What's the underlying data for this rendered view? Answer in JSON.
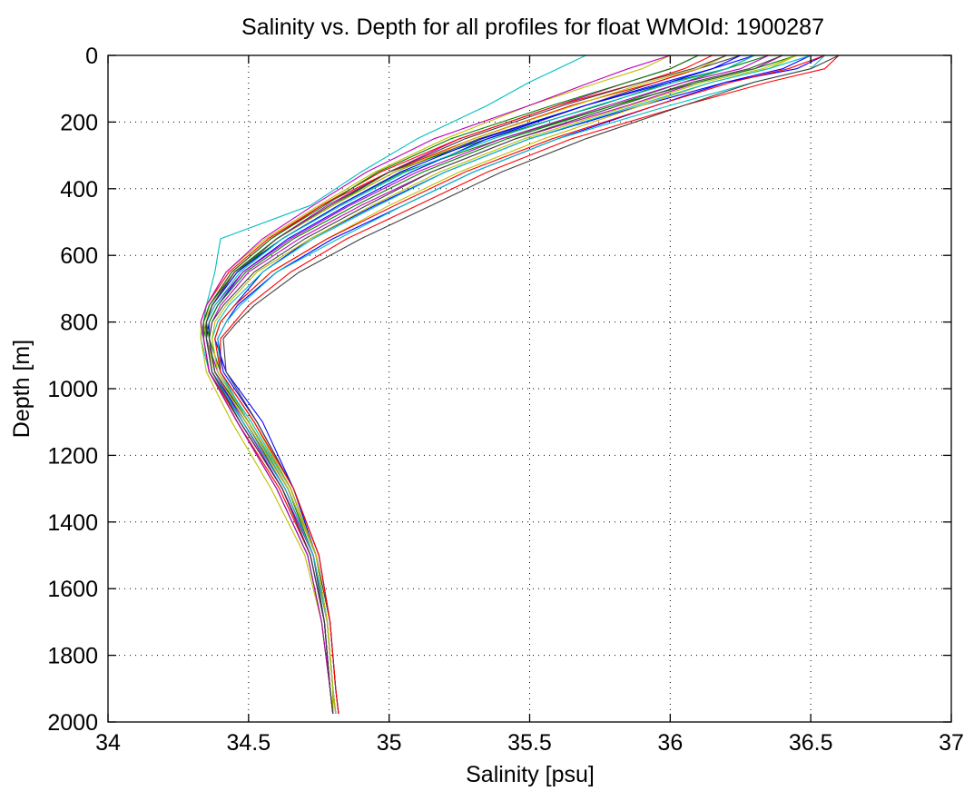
{
  "chart_data": {
    "type": "line",
    "title": "Salinity vs. Depth for all profiles for float WMOId: 1900287",
    "xlabel": "Salinity [psu]",
    "ylabel": "Depth [m]",
    "xlim": [
      34,
      37
    ],
    "ylim": [
      0,
      2000
    ],
    "y_reversed": true,
    "grid": true,
    "legend": "none",
    "x_ticks": [
      "34",
      "34.5",
      "35",
      "35.5",
      "36",
      "36.5",
      "37"
    ],
    "y_ticks": [
      "0",
      "200",
      "400",
      "600",
      "800",
      "1000",
      "1200",
      "1400",
      "1600",
      "1800",
      "2000"
    ],
    "colors": [
      "#0000ff",
      "#008000",
      "#ff0000",
      "#00bfbf",
      "#bf00bf",
      "#bfbf00",
      "#404040"
    ],
    "depths": [
      0,
      40,
      80,
      150,
      250,
      350,
      450,
      550,
      650,
      750,
      800,
      850,
      950,
      1100,
      1300,
      1500,
      1700,
      1900,
      1975
    ],
    "series": [
      {
        "values": [
          36.55,
          36.45,
          36.2,
          35.9,
          35.5,
          35.2,
          34.95,
          34.72,
          34.55,
          34.45,
          34.4,
          34.38,
          34.42,
          34.55,
          34.66,
          34.74,
          34.78,
          34.8,
          34.81
        ]
      },
      {
        "values": [
          36.3,
          36.2,
          36.05,
          35.8,
          35.4,
          35.05,
          34.82,
          34.62,
          34.45,
          34.37,
          34.35,
          34.36,
          34.4,
          34.5,
          34.64,
          34.73,
          34.78,
          34.8,
          34.8
        ]
      },
      {
        "values": [
          36.6,
          36.55,
          36.35,
          36.05,
          35.65,
          35.35,
          35.1,
          34.85,
          34.65,
          34.5,
          34.45,
          34.4,
          34.4,
          34.52,
          34.65,
          34.74,
          34.78,
          34.8,
          34.81
        ]
      },
      {
        "values": [
          35.7,
          35.6,
          35.5,
          35.35,
          35.1,
          34.9,
          34.72,
          34.4,
          34.38,
          34.35,
          34.34,
          34.33,
          34.36,
          34.48,
          34.63,
          34.73,
          34.77,
          34.79,
          34.8
        ]
      },
      {
        "values": [
          36.1,
          36.0,
          35.85,
          35.6,
          35.25,
          35.0,
          34.78,
          34.6,
          34.45,
          34.37,
          34.35,
          34.35,
          34.39,
          34.5,
          34.64,
          34.74,
          34.78,
          34.8,
          34.81
        ]
      },
      {
        "values": [
          36.45,
          36.35,
          36.15,
          35.9,
          35.55,
          35.25,
          35.0,
          34.78,
          34.58,
          34.45,
          34.4,
          34.38,
          34.4,
          34.52,
          34.65,
          34.74,
          34.78,
          34.8,
          34.8
        ]
      },
      {
        "values": [
          36.25,
          36.1,
          35.95,
          35.7,
          35.32,
          35.02,
          34.8,
          34.6,
          34.45,
          34.36,
          34.34,
          34.35,
          34.38,
          34.49,
          34.63,
          34.73,
          34.77,
          34.79,
          34.8
        ]
      },
      {
        "values": [
          36.5,
          36.4,
          36.2,
          35.95,
          35.6,
          35.3,
          35.05,
          34.8,
          34.6,
          34.46,
          34.42,
          34.39,
          34.41,
          34.53,
          34.66,
          34.75,
          34.79,
          34.81,
          34.82
        ]
      },
      {
        "values": [
          36.35,
          36.2,
          36.0,
          35.75,
          35.35,
          35.0,
          34.8,
          34.6,
          34.46,
          34.37,
          34.35,
          34.34,
          34.36,
          34.46,
          34.6,
          34.71,
          34.76,
          34.79,
          34.8
        ]
      },
      {
        "values": [
          36.2,
          36.1,
          35.95,
          35.65,
          35.3,
          35.0,
          34.76,
          34.57,
          34.43,
          34.35,
          34.33,
          34.34,
          34.36,
          34.47,
          34.62,
          34.72,
          34.77,
          34.79,
          34.8
        ]
      },
      {
        "values": [
          36.55,
          36.5,
          36.3,
          36.0,
          35.6,
          35.3,
          35.05,
          34.82,
          34.6,
          34.47,
          34.42,
          34.39,
          34.4,
          34.5,
          34.64,
          34.74,
          34.78,
          34.8,
          34.81
        ]
      },
      {
        "values": [
          36.4,
          36.3,
          36.1,
          35.85,
          35.45,
          35.15,
          34.9,
          34.68,
          34.5,
          34.4,
          34.37,
          34.36,
          34.38,
          34.48,
          34.63,
          34.73,
          34.78,
          34.8,
          34.81
        ]
      },
      {
        "values": [
          36.0,
          35.9,
          35.75,
          35.5,
          35.2,
          34.95,
          34.75,
          34.56,
          34.42,
          34.35,
          34.33,
          34.33,
          34.35,
          34.44,
          34.58,
          34.7,
          34.76,
          34.79,
          34.8
        ]
      },
      {
        "values": [
          36.6,
          36.5,
          36.3,
          36.05,
          35.7,
          35.4,
          35.15,
          34.9,
          34.68,
          34.52,
          34.46,
          34.41,
          34.42,
          34.53,
          34.66,
          34.75,
          34.79,
          34.81,
          34.82
        ]
      },
      {
        "values": [
          36.3,
          36.15,
          36.0,
          35.7,
          35.35,
          35.08,
          34.85,
          34.64,
          34.48,
          34.39,
          34.36,
          34.35,
          34.37,
          34.49,
          34.64,
          34.74,
          34.78,
          34.8,
          34.81
        ]
      },
      {
        "values": [
          36.45,
          36.3,
          36.1,
          35.8,
          35.42,
          35.12,
          34.88,
          34.66,
          34.49,
          34.39,
          34.36,
          34.36,
          34.38,
          34.5,
          34.65,
          34.74,
          34.78,
          34.8,
          34.81
        ]
      },
      {
        "values": [
          36.15,
          36.05,
          35.9,
          35.6,
          35.25,
          34.97,
          34.76,
          34.58,
          34.44,
          34.36,
          34.34,
          34.34,
          34.36,
          34.46,
          34.61,
          34.72,
          34.77,
          34.79,
          34.8
        ]
      },
      {
        "values": [
          36.5,
          36.35,
          36.15,
          35.88,
          35.5,
          35.2,
          34.96,
          34.73,
          34.55,
          34.43,
          34.39,
          34.37,
          34.39,
          34.51,
          34.65,
          34.74,
          34.78,
          34.8,
          34.81
        ]
      },
      {
        "values": [
          36.35,
          36.25,
          36.05,
          35.78,
          35.4,
          35.1,
          34.86,
          34.65,
          34.48,
          34.38,
          34.35,
          34.35,
          34.37,
          34.48,
          34.62,
          34.73,
          34.78,
          34.8,
          34.81
        ]
      },
      {
        "values": [
          36.2,
          36.1,
          35.92,
          35.66,
          35.3,
          35.02,
          34.8,
          34.6,
          34.45,
          34.37,
          34.34,
          34.35,
          34.38,
          34.49,
          34.64,
          34.74,
          34.78,
          34.8,
          34.81
        ]
      },
      {
        "values": [
          36.4,
          36.28,
          36.08,
          35.82,
          35.45,
          35.15,
          34.92,
          34.7,
          34.52,
          34.41,
          34.37,
          34.36,
          34.38,
          34.5,
          34.65,
          34.74,
          34.79,
          34.81,
          34.82
        ]
      },
      {
        "values": [
          36.25,
          36.15,
          35.98,
          35.7,
          35.33,
          35.04,
          34.82,
          34.62,
          34.46,
          34.37,
          34.35,
          34.35,
          34.37,
          34.47,
          34.62,
          34.72,
          34.77,
          34.79,
          34.8
        ]
      },
      {
        "values": [
          36.1,
          36.0,
          35.85,
          35.58,
          35.22,
          34.96,
          34.77,
          34.58,
          34.44,
          34.36,
          34.34,
          34.34,
          34.36,
          34.46,
          34.6,
          34.71,
          34.76,
          34.79,
          34.8
        ]
      },
      {
        "values": [
          36.55,
          36.42,
          36.22,
          35.95,
          35.58,
          35.27,
          35.02,
          34.78,
          34.58,
          34.45,
          34.4,
          34.38,
          34.4,
          34.52,
          34.66,
          34.75,
          34.79,
          34.81,
          34.82
        ]
      },
      {
        "values": [
          36.3,
          36.2,
          36.02,
          35.74,
          35.37,
          35.06,
          34.83,
          34.62,
          34.47,
          34.38,
          34.35,
          34.35,
          34.37,
          34.48,
          34.63,
          34.73,
          34.78,
          34.8,
          34.81
        ]
      },
      {
        "values": [
          36.0,
          35.85,
          35.72,
          35.5,
          35.16,
          34.92,
          34.73,
          34.55,
          34.42,
          34.35,
          34.33,
          34.34,
          34.36,
          34.46,
          34.6,
          34.71,
          34.76,
          34.79,
          34.8
        ]
      },
      {
        "values": [
          36.45,
          36.33,
          36.12,
          35.86,
          35.48,
          35.18,
          34.94,
          34.72,
          34.53,
          34.42,
          34.38,
          34.37,
          34.39,
          34.5,
          34.65,
          34.74,
          34.78,
          34.8,
          34.81
        ]
      },
      {
        "values": [
          36.2,
          36.08,
          35.9,
          35.62,
          35.27,
          35.0,
          34.79,
          34.6,
          34.45,
          34.37,
          34.35,
          34.35,
          34.37,
          34.47,
          34.62,
          34.72,
          34.77,
          34.79,
          34.8
        ]
      }
    ]
  }
}
